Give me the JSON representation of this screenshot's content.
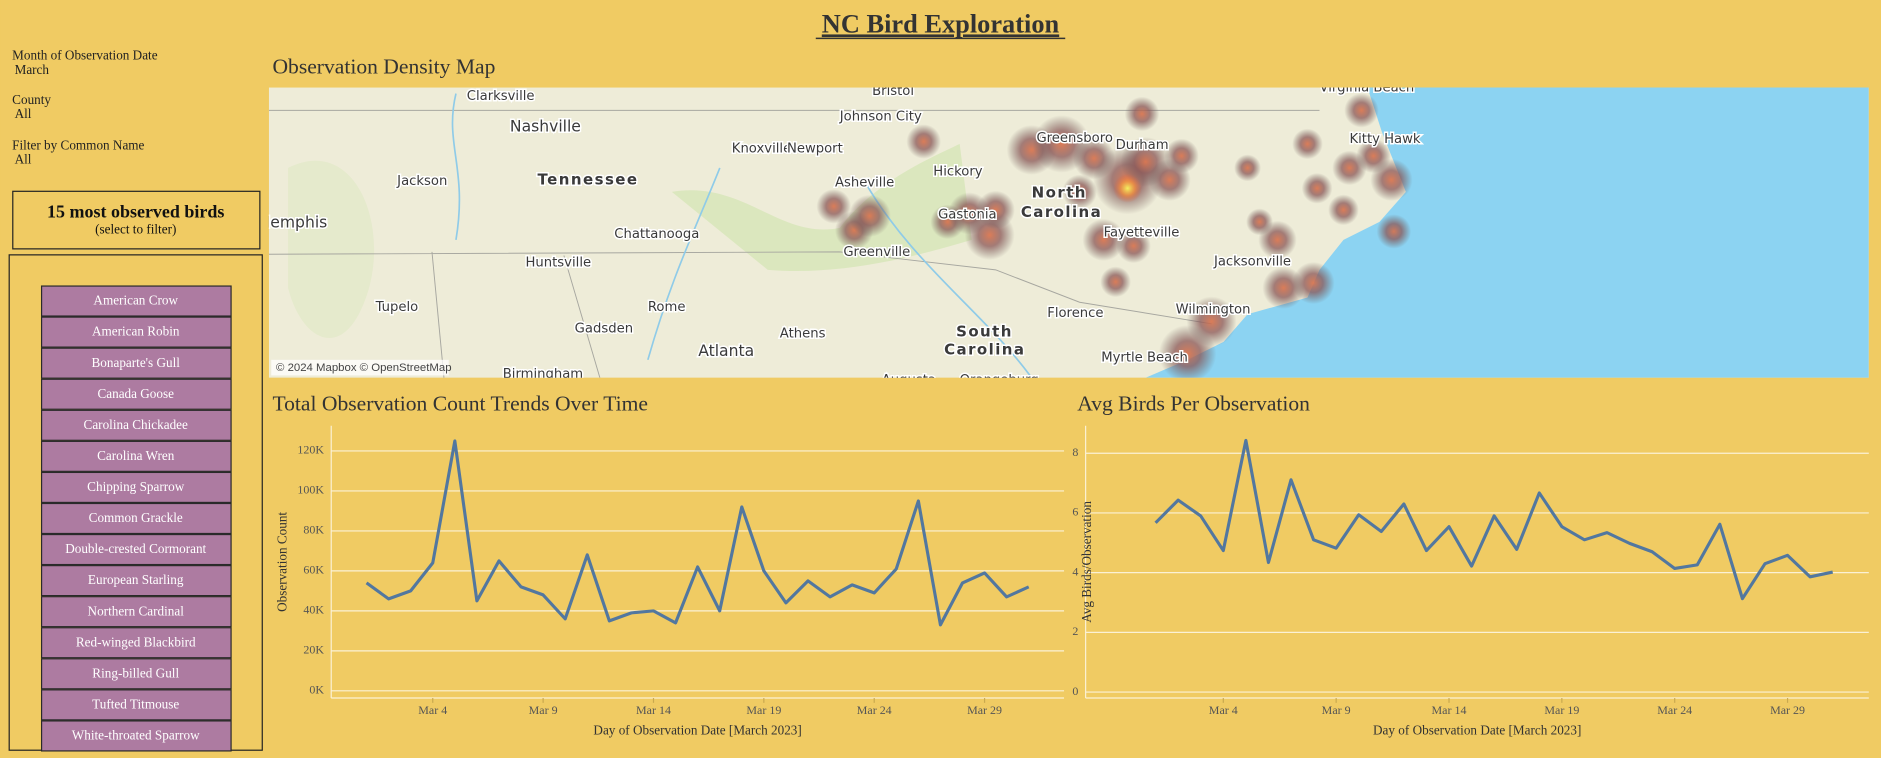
{
  "header": {
    "title": "NC Bird Exploration"
  },
  "filters": [
    {
      "label": "Month of Observation Date",
      "value": "March"
    },
    {
      "label": "County",
      "value": "All"
    },
    {
      "label": "Filter by Common Name",
      "value": "All"
    }
  ],
  "bird_panel": {
    "title": "15 most observed birds",
    "subtitle": "(select to filter)",
    "birds": [
      "American Crow",
      "American Robin",
      "Bonaparte's Gull",
      "Canada Goose",
      "Carolina Chickadee",
      "Carolina Wren",
      "Chipping Sparrow",
      "Common Grackle",
      "Double-crested Cormorant",
      "European Starling",
      "Northern Cardinal",
      "Red-winged Blackbird",
      "Ring-billed Gull",
      "Tufted Titmouse",
      "White-throated Sparrow"
    ]
  },
  "map": {
    "title": "Observation Density Map",
    "attribution": "© 2024 Mapbox © OpenStreetMap",
    "labels": [
      "Virginia Beach",
      "Bristol",
      "Clarksville",
      "Nashville",
      "Johnson City",
      "Knoxville",
      "Newport",
      "Greensboro",
      "Durham",
      "Kitty Hawk",
      "Tennessee",
      "Jackson",
      "Asheville",
      "Hickory",
      "North",
      "Carolina",
      "Gastonia",
      "Memphis",
      "Fayetteville",
      "Chattanooga",
      "Greenville",
      "Huntsville",
      "Jacksonville",
      "Tupelo",
      "Rome",
      "Florence",
      "Wilmington",
      "Gadsden",
      "Athens",
      "South",
      "Carolina",
      "Atlanta",
      "Myrtle Beach",
      "Birmingham",
      "Augusta",
      "Orangeburg"
    ]
  },
  "chart_data": [
    {
      "type": "line",
      "title": "Total Observation Count Trends Over Time",
      "x_label": "Day of Observation Date [March 2023]",
      "y_label": "Observation Count",
      "color": "#52779f",
      "x": [
        1,
        2,
        3,
        4,
        5,
        6,
        7,
        8,
        9,
        10,
        11,
        12,
        13,
        14,
        15,
        16,
        17,
        18,
        19,
        20,
        21,
        22,
        23,
        24,
        25,
        26,
        27,
        28,
        29,
        30,
        31
      ],
      "values": [
        54000,
        46000,
        50000,
        64000,
        125000,
        45000,
        65000,
        52000,
        48000,
        36000,
        68000,
        35000,
        39000,
        40000,
        34000,
        62000,
        40000,
        92000,
        60000,
        44000,
        55000,
        47000,
        53000,
        49000,
        61000,
        95000,
        33000,
        54000,
        59000,
        47000,
        52000
      ],
      "xlim": [
        -0.6,
        32.6
      ],
      "xticks": [
        {
          "value": 4,
          "label": "Mar 4"
        },
        {
          "value": 9,
          "label": "Mar 9"
        },
        {
          "value": 14,
          "label": "Mar 14"
        },
        {
          "value": 19,
          "label": "Mar 19"
        },
        {
          "value": 24,
          "label": "Mar 24"
        },
        {
          "value": 29,
          "label": "Mar 29"
        }
      ],
      "ylim": [
        -3600,
        132600
      ],
      "yticks": [
        {
          "value": 0,
          "label": "0K"
        },
        {
          "value": 20000,
          "label": "20K"
        },
        {
          "value": 40000,
          "label": "40K"
        },
        {
          "value": 60000,
          "label": "60K"
        },
        {
          "value": 80000,
          "label": "80K"
        },
        {
          "value": 100000,
          "label": "100K"
        },
        {
          "value": 120000,
          "label": "120K"
        }
      ],
      "grid": true
    },
    {
      "type": "line",
      "title": "Avg Birds Per Observation",
      "x_label": "Day of Observation Date [March 2023]",
      "y_label": "Avg Birds/Observation",
      "color": "#52779f",
      "x": [
        1,
        2,
        3,
        4,
        5,
        6,
        7,
        8,
        9,
        10,
        11,
        12,
        13,
        14,
        15,
        16,
        17,
        18,
        19,
        20,
        21,
        22,
        23,
        24,
        25,
        26,
        27,
        28,
        29,
        30,
        31
      ],
      "values": [
        5.67,
        6.43,
        5.9,
        4.74,
        8.43,
        4.34,
        7.11,
        5.1,
        4.82,
        5.94,
        5.38,
        6.3,
        4.74,
        5.54,
        4.22,
        5.9,
        4.78,
        6.67,
        5.54,
        5.1,
        5.34,
        4.98,
        4.7,
        4.14,
        4.26,
        5.62,
        3.13,
        4.3,
        4.58,
        3.86,
        4.02
      ],
      "xlim": [
        -2.1,
        32.6
      ],
      "xticks": [
        {
          "value": 4,
          "label": "Mar 4"
        },
        {
          "value": 9,
          "label": "Mar 9"
        },
        {
          "value": 14,
          "label": "Mar 14"
        },
        {
          "value": 19,
          "label": "Mar 19"
        },
        {
          "value": 24,
          "label": "Mar 24"
        },
        {
          "value": 29,
          "label": "Mar 29"
        }
      ],
      "ylim": [
        -0.2,
        8.92
      ],
      "yticks": [
        0,
        2,
        4,
        6,
        8
      ],
      "grid": true
    }
  ]
}
